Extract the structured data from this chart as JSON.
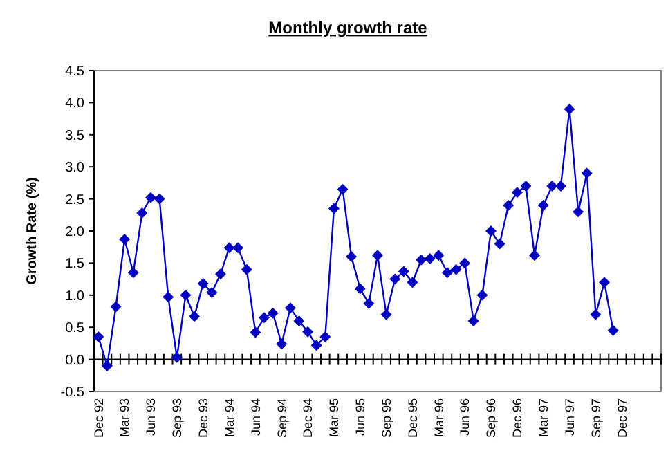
{
  "chart_data": {
    "type": "line",
    "title": "Monthly growth rate",
    "ylabel": "Growth Rate (%)",
    "categories": [
      "Dec 92",
      null,
      null,
      "Mar 93",
      null,
      null,
      "Jun 93",
      null,
      null,
      "Sep 93",
      null,
      null,
      "Dec 93",
      null,
      null,
      "Mar 94",
      null,
      null,
      "Jun 94",
      null,
      null,
      "Sep 94",
      null,
      null,
      "Dec 94",
      null,
      null,
      "Mar 95",
      null,
      null,
      "Jun 95",
      null,
      null,
      "Sep 95",
      null,
      null,
      "Dec 95",
      null,
      null,
      "Mar 96",
      null,
      null,
      "Jun 96",
      null,
      null,
      "Sep 96",
      null,
      null,
      "Dec 96",
      null,
      null,
      "Mar 97",
      null,
      null,
      "Jun 97",
      null,
      null,
      "Sep 97",
      null,
      null,
      "Dec 97",
      null,
      null,
      null,
      null
    ],
    "series": [
      {
        "color": "#0000c0",
        "values": [
          0.35,
          -0.1,
          0.82,
          1.87,
          1.35,
          2.28,
          2.52,
          2.5,
          0.97,
          0.03,
          1.0,
          0.67,
          1.18,
          1.04,
          1.33,
          1.74,
          1.74,
          1.4,
          0.42,
          0.65,
          0.72,
          0.24,
          0.8,
          0.6,
          0.43,
          0.22,
          0.35,
          2.35,
          2.65,
          1.6,
          1.1,
          0.87,
          1.62,
          0.7,
          1.25,
          1.37,
          1.2,
          1.55,
          1.57,
          1.62,
          1.35,
          1.4,
          1.5,
          0.6,
          1.0,
          2.0,
          1.8,
          2.4,
          2.6,
          2.7,
          1.62,
          2.4,
          2.7,
          2.7,
          3.9,
          2.3,
          2.9,
          0.7,
          1.2,
          0.45,
          null,
          null,
          null,
          null,
          null
        ]
      }
    ],
    "ylim": [
      -0.5,
      4.5
    ],
    "yticks": [
      {
        "value": -0.5,
        "label": "-0.5"
      },
      {
        "value": 0,
        "label": "0.0"
      },
      {
        "value": 0.5,
        "label": "0.5"
      },
      {
        "value": 1,
        "label": "1.0"
      },
      {
        "value": 1.5,
        "label": "1.5"
      },
      {
        "value": 2,
        "label": "2.0"
      },
      {
        "value": 2.5,
        "label": "2.5"
      },
      {
        "value": 3,
        "label": "3.0"
      },
      {
        "value": 3.5,
        "label": "3.5"
      },
      {
        "value": 4,
        "label": "4.0"
      },
      {
        "value": 4.5,
        "label": "4.5"
      }
    ],
    "marker": "diamond",
    "line_style": "solid"
  }
}
